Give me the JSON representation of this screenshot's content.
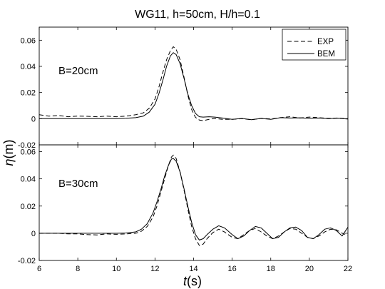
{
  "figure": {
    "title": "WG11, h=50cm, H/h=0.1",
    "xlabel": {
      "var": "t",
      "unit": "(s)"
    },
    "ylabel": {
      "var": "η",
      "unit": "(m)"
    }
  },
  "legend": {
    "placement": "top-right of upper panel",
    "entries": [
      {
        "label": "EXP",
        "style": "dashed"
      },
      {
        "label": "BEM",
        "style": "solid"
      }
    ]
  },
  "chart_data": [
    {
      "type": "line",
      "panel_label": "B=20cm",
      "xlim": [
        6,
        22
      ],
      "ylim": [
        -0.02,
        0.07
      ],
      "xticks": [
        6,
        8,
        10,
        12,
        14,
        16,
        18,
        20,
        22
      ],
      "yticks": [
        -0.02,
        0,
        0.02,
        0.04,
        0.06
      ],
      "ytick_labels": [
        "-0.02",
        "0",
        "0.02",
        "0.04",
        "0.06"
      ],
      "grid": false,
      "series": [
        {
          "name": "EXP",
          "style": "dashed",
          "points": [
            [
              6,
              0.003
            ],
            [
              6.5,
              0.002
            ],
            [
              7,
              0.0025
            ],
            [
              7.5,
              0.0015
            ],
            [
              8,
              0.002
            ],
            [
              8.5,
              0.0018
            ],
            [
              9,
              0.0015
            ],
            [
              9.5,
              0.002
            ],
            [
              10,
              0.0015
            ],
            [
              10.5,
              0.002
            ],
            [
              11,
              0.003
            ],
            [
              11.4,
              0.0045
            ],
            [
              11.7,
              0.008
            ],
            [
              12,
              0.015
            ],
            [
              12.2,
              0.024
            ],
            [
              12.4,
              0.035
            ],
            [
              12.6,
              0.045
            ],
            [
              12.8,
              0.052
            ],
            [
              12.95,
              0.055
            ],
            [
              13.1,
              0.053
            ],
            [
              13.3,
              0.045
            ],
            [
              13.5,
              0.032
            ],
            [
              13.7,
              0.018
            ],
            [
              13.9,
              0.007
            ],
            [
              14.1,
              0.001
            ],
            [
              14.3,
              -0.001
            ],
            [
              14.5,
              -0.0015
            ],
            [
              14.8,
              -0.0005
            ],
            [
              15.1,
              0.0002
            ],
            [
              15.5,
              -0.0005
            ],
            [
              16,
              -0.0005
            ],
            [
              16.5,
              0
            ],
            [
              17,
              -0.0008
            ],
            [
              17.5,
              0.0003
            ],
            [
              18,
              -0.0002
            ],
            [
              18.5,
              0.0008
            ],
            [
              19,
              0.0015
            ],
            [
              19.5,
              0.0005
            ],
            [
              20,
              0.0012
            ],
            [
              20.5,
              0.0008
            ],
            [
              21,
              0.0003
            ],
            [
              21.5,
              0.0005
            ],
            [
              22,
              0
            ]
          ]
        },
        {
          "name": "BEM",
          "style": "solid",
          "points": [
            [
              6,
              0
            ],
            [
              7,
              0
            ],
            [
              8,
              0
            ],
            [
              9,
              0
            ],
            [
              10,
              0
            ],
            [
              10.5,
              0.0003
            ],
            [
              11,
              0.0008
            ],
            [
              11.4,
              0.002
            ],
            [
              11.7,
              0.005
            ],
            [
              12,
              0.011
            ],
            [
              12.2,
              0.019
            ],
            [
              12.4,
              0.029
            ],
            [
              12.6,
              0.04
            ],
            [
              12.8,
              0.048
            ],
            [
              12.95,
              0.0505
            ],
            [
              13.1,
              0.049
            ],
            [
              13.3,
              0.042
            ],
            [
              13.5,
              0.031
            ],
            [
              13.7,
              0.019
            ],
            [
              13.9,
              0.01
            ],
            [
              14.1,
              0.004
            ],
            [
              14.3,
              0.0015
            ],
            [
              14.5,
              0.0012
            ],
            [
              14.8,
              0.0015
            ],
            [
              15.1,
              0.0012
            ],
            [
              15.5,
              0.0005
            ],
            [
              16,
              -0.0005
            ],
            [
              16.5,
              0.0002
            ],
            [
              17,
              -0.0008
            ],
            [
              17.5,
              0.0002
            ],
            [
              18,
              -0.0005
            ],
            [
              18.5,
              0.0008
            ],
            [
              19,
              0.0005
            ],
            [
              19.5,
              0.0007
            ],
            [
              20,
              0.0003
            ],
            [
              20.5,
              0.0005
            ],
            [
              21,
              0
            ],
            [
              21.5,
              0.0004
            ],
            [
              22,
              -0.0003
            ]
          ]
        }
      ]
    },
    {
      "type": "line",
      "panel_label": "B=30cm",
      "xlim": [
        6,
        22
      ],
      "ylim": [
        -0.02,
        0.065
      ],
      "xticks": [
        6,
        8,
        10,
        12,
        14,
        16,
        18,
        20,
        22
      ],
      "xtick_labels": [
        "6",
        "8",
        "10",
        "12",
        "14",
        "16",
        "18",
        "20",
        "22"
      ],
      "yticks": [
        -0.02,
        0,
        0.02,
        0.04,
        0.06
      ],
      "ytick_labels": [
        "-0.02",
        "0",
        "0.02",
        "0.04",
        "0.06"
      ],
      "grid": false,
      "series": [
        {
          "name": "EXP",
          "style": "dashed",
          "points": [
            [
              6,
              0
            ],
            [
              7,
              0
            ],
            [
              7.5,
              -0.0005
            ],
            [
              8,
              -0.0005
            ],
            [
              8.5,
              -0.001
            ],
            [
              9,
              -0.0012
            ],
            [
              9.5,
              -0.0005
            ],
            [
              10,
              -0.0008
            ],
            [
              10.5,
              -0.0005
            ],
            [
              11,
              0
            ],
            [
              11.3,
              0.0015
            ],
            [
              11.6,
              0.005
            ],
            [
              11.9,
              0.012
            ],
            [
              12.1,
              0.02
            ],
            [
              12.3,
              0.03
            ],
            [
              12.5,
              0.04
            ],
            [
              12.7,
              0.05
            ],
            [
              12.85,
              0.056
            ],
            [
              12.95,
              0.0575
            ],
            [
              13.1,
              0.055
            ],
            [
              13.3,
              0.045
            ],
            [
              13.5,
              0.032
            ],
            [
              13.7,
              0.018
            ],
            [
              13.9,
              0.005
            ],
            [
              14.1,
              -0.004
            ],
            [
              14.3,
              -0.009
            ],
            [
              14.5,
              -0.008
            ],
            [
              14.7,
              -0.004
            ],
            [
              15,
              0.0005
            ],
            [
              15.3,
              0.003
            ],
            [
              15.6,
              0.001
            ],
            [
              16,
              -0.003
            ],
            [
              16.3,
              -0.004
            ],
            [
              16.6,
              -0.001
            ],
            [
              16.9,
              0.002
            ],
            [
              17.2,
              0.0035
            ],
            [
              17.5,
              0.001
            ],
            [
              17.8,
              -0.002
            ],
            [
              18.1,
              -0.004
            ],
            [
              18.4,
              -0.002
            ],
            [
              18.7,
              0.001
            ],
            [
              19,
              0.0035
            ],
            [
              19.3,
              0.003
            ],
            [
              19.6,
              0
            ],
            [
              19.9,
              -0.003
            ],
            [
              20.2,
              -0.004
            ],
            [
              20.5,
              -0.002
            ],
            [
              20.8,
              0.001
            ],
            [
              21.1,
              0.003
            ],
            [
              21.4,
              0.0025
            ],
            [
              21.7,
              0
            ],
            [
              22,
              -0.0015
            ]
          ]
        },
        {
          "name": "BEM",
          "style": "solid",
          "points": [
            [
              6,
              0
            ],
            [
              7,
              0
            ],
            [
              8,
              0
            ],
            [
              9,
              0
            ],
            [
              10,
              0
            ],
            [
              10.5,
              0.0002
            ],
            [
              11,
              0.001
            ],
            [
              11.3,
              0.003
            ],
            [
              11.6,
              0.007
            ],
            [
              11.9,
              0.015
            ],
            [
              12.1,
              0.023
            ],
            [
              12.3,
              0.032
            ],
            [
              12.5,
              0.042
            ],
            [
              12.7,
              0.05
            ],
            [
              12.85,
              0.0545
            ],
            [
              12.95,
              0.055
            ],
            [
              13.1,
              0.053
            ],
            [
              13.3,
              0.045
            ],
            [
              13.5,
              0.033
            ],
            [
              13.7,
              0.02
            ],
            [
              13.9,
              0.008
            ],
            [
              14.1,
              -0.001
            ],
            [
              14.3,
              -0.005
            ],
            [
              14.5,
              -0.004
            ],
            [
              14.7,
              -0.001
            ],
            [
              15,
              0.003
            ],
            [
              15.3,
              0.0055
            ],
            [
              15.6,
              0.004
            ],
            [
              16,
              -0.001
            ],
            [
              16.3,
              -0.004
            ],
            [
              16.6,
              -0.002
            ],
            [
              16.9,
              0.002
            ],
            [
              17.2,
              0.005
            ],
            [
              17.5,
              0.004
            ],
            [
              17.8,
              0
            ],
            [
              18.1,
              -0.004
            ],
            [
              18.4,
              -0.003
            ],
            [
              18.7,
              0.001
            ],
            [
              19,
              0.004
            ],
            [
              19.3,
              0.0045
            ],
            [
              19.6,
              0.002
            ],
            [
              19.9,
              -0.003
            ],
            [
              20.2,
              -0.004
            ],
            [
              20.5,
              -0.001
            ],
            [
              20.8,
              0.003
            ],
            [
              21.1,
              0.004
            ],
            [
              21.4,
              0.002
            ],
            [
              21.7,
              -0.002
            ],
            [
              22,
              0.0045
            ]
          ]
        }
      ]
    }
  ]
}
